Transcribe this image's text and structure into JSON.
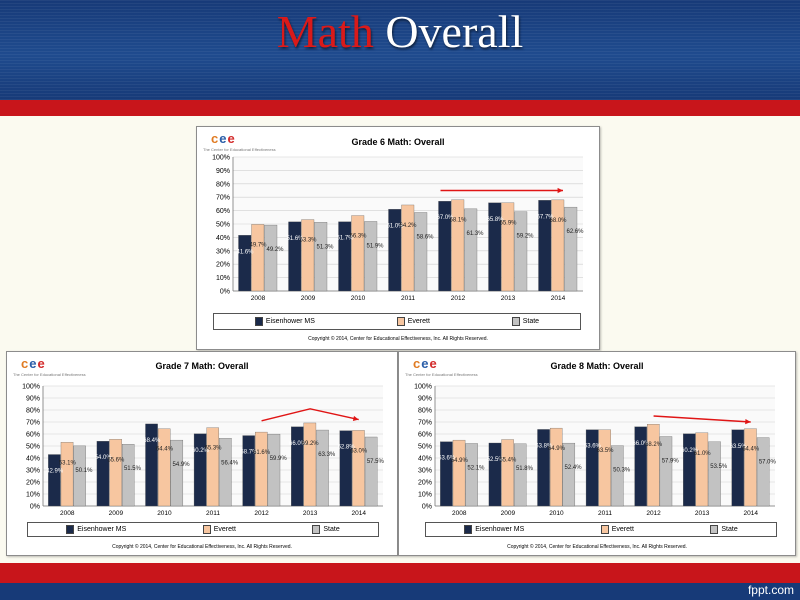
{
  "page": {
    "title_word1": "Math",
    "title_word2": "Overall",
    "footer": "fppt.com"
  },
  "colors": {
    "eisenhower": "#1b2a4a",
    "everett": "#f7c6a0",
    "state": "#c2c2c2",
    "arrow": "#e01515"
  },
  "logo": {
    "c": "c",
    "e1": "e",
    "e2": "e",
    "sub": "The Center for Educational Effectiveness"
  },
  "copyright": "Copyright © 2014, Center for Educational Effectiveness, Inc. All Rights Reserved.",
  "chart_data": [
    {
      "type": "bar",
      "title": "Grade 6 Math: Overall",
      "categories": [
        "2008",
        "2009",
        "2010",
        "2011",
        "2012",
        "2013",
        "2014"
      ],
      "series": [
        {
          "name": "Eisenhower MS",
          "values": [
            41.6,
            51.6,
            51.7,
            61.0,
            67.0,
            65.8,
            67.7
          ]
        },
        {
          "name": "Everett",
          "values": [
            49.7,
            53.3,
            56.3,
            64.2,
            68.1,
            65.9,
            68.0
          ]
        },
        {
          "name": "State",
          "values": [
            49.2,
            51.3,
            51.9,
            58.6,
            61.3,
            59.2,
            62.6
          ]
        }
      ],
      "ylim": [
        0,
        100
      ],
      "yticks": [
        "0%",
        "10%",
        "20%",
        "30%",
        "40%",
        "50%",
        "60%",
        "70%",
        "80%",
        "90%",
        "100%"
      ],
      "data_labels": {
        "Eisenhower MS": [
          "41.6%",
          "51.6%",
          "51.7%",
          "61.0%",
          "67.0%",
          "65.8%",
          "67.7%"
        ],
        "Everett": [
          "49.7%",
          "53.3%",
          "56.3%",
          "64.2%",
          "68.1%",
          "65.9%",
          "68.0%"
        ],
        "State": [
          "49.2%",
          "51.3%",
          "51.9%",
          "58.6%",
          "61.3%",
          "59.2%",
          "62.6%"
        ]
      },
      "arrow": {
        "from_category": "2012",
        "to_category": "2014",
        "from_value": 75,
        "to_value": 75
      }
    },
    {
      "type": "bar",
      "title": "Grade 7 Math: Overall",
      "categories": [
        "2008",
        "2009",
        "2010",
        "2011",
        "2012",
        "2013",
        "2014"
      ],
      "series": [
        {
          "name": "Eisenhower MS",
          "values": [
            42.9,
            54.0,
            68.4,
            60.2,
            58.7,
            66.0,
            62.8
          ]
        },
        {
          "name": "Everett",
          "values": [
            53.1,
            55.6,
            64.4,
            65.3,
            61.6,
            69.2,
            63.0
          ]
        },
        {
          "name": "State",
          "values": [
            50.1,
            51.5,
            54.9,
            56.4,
            59.9,
            63.3,
            57.5
          ]
        }
      ],
      "ylim": [
        0,
        100
      ],
      "yticks": [
        "0%",
        "10%",
        "20%",
        "30%",
        "40%",
        "50%",
        "60%",
        "70%",
        "80%",
        "90%",
        "100%"
      ],
      "data_labels": {
        "Eisenhower MS": [
          "42.9%",
          "54.0%",
          "68.4%",
          "60.2%",
          "58.7%",
          "66.0%",
          "62.8%"
        ],
        "Everett": [
          "53.1%",
          "55.6%",
          "64.4%",
          "65.3%",
          "61.6%",
          "69.2%",
          "63.0%"
        ],
        "State": [
          "50.1%",
          "51.5%",
          "54.9%",
          "56.4%",
          "59.9%",
          "63.3%",
          "57.5%"
        ]
      },
      "arrow": {
        "points": [
          [
            "2012",
            71
          ],
          [
            "2013",
            81
          ],
          [
            "2014",
            72
          ]
        ]
      }
    },
    {
      "type": "bar",
      "title": "Grade 8 Math: Overall",
      "categories": [
        "2008",
        "2009",
        "2010",
        "2011",
        "2012",
        "2013",
        "2014"
      ],
      "series": [
        {
          "name": "Eisenhower MS",
          "values": [
            53.6,
            52.5,
            63.8,
            63.6,
            66.0,
            60.2,
            63.5
          ]
        },
        {
          "name": "Everett",
          "values": [
            54.9,
            55.4,
            64.9,
            63.5,
            68.2,
            61.0,
            64.4
          ]
        },
        {
          "name": "State",
          "values": [
            52.1,
            51.8,
            52.4,
            50.3,
            57.9,
            53.5,
            57.0
          ]
        }
      ],
      "ylim": [
        0,
        100
      ],
      "yticks": [
        "0%",
        "10%",
        "20%",
        "30%",
        "40%",
        "50%",
        "60%",
        "70%",
        "80%",
        "90%",
        "100%"
      ],
      "data_labels": {
        "Eisenhower MS": [
          "53.6%",
          "52.5%",
          "63.8%",
          "63.6%",
          "66.0%",
          "60.2%",
          "63.5%"
        ],
        "Everett": [
          "54.9%",
          "55.4%",
          "64.9%",
          "63.5%",
          "68.2%",
          "61.0%",
          "64.4%"
        ],
        "State": [
          "52.1%",
          "51.8%",
          "52.4%",
          "50.3%",
          "57.9%",
          "53.5%",
          "57.0%"
        ]
      },
      "arrow": {
        "points": [
          [
            "2012",
            75
          ],
          [
            "2014",
            70
          ]
        ]
      }
    }
  ]
}
